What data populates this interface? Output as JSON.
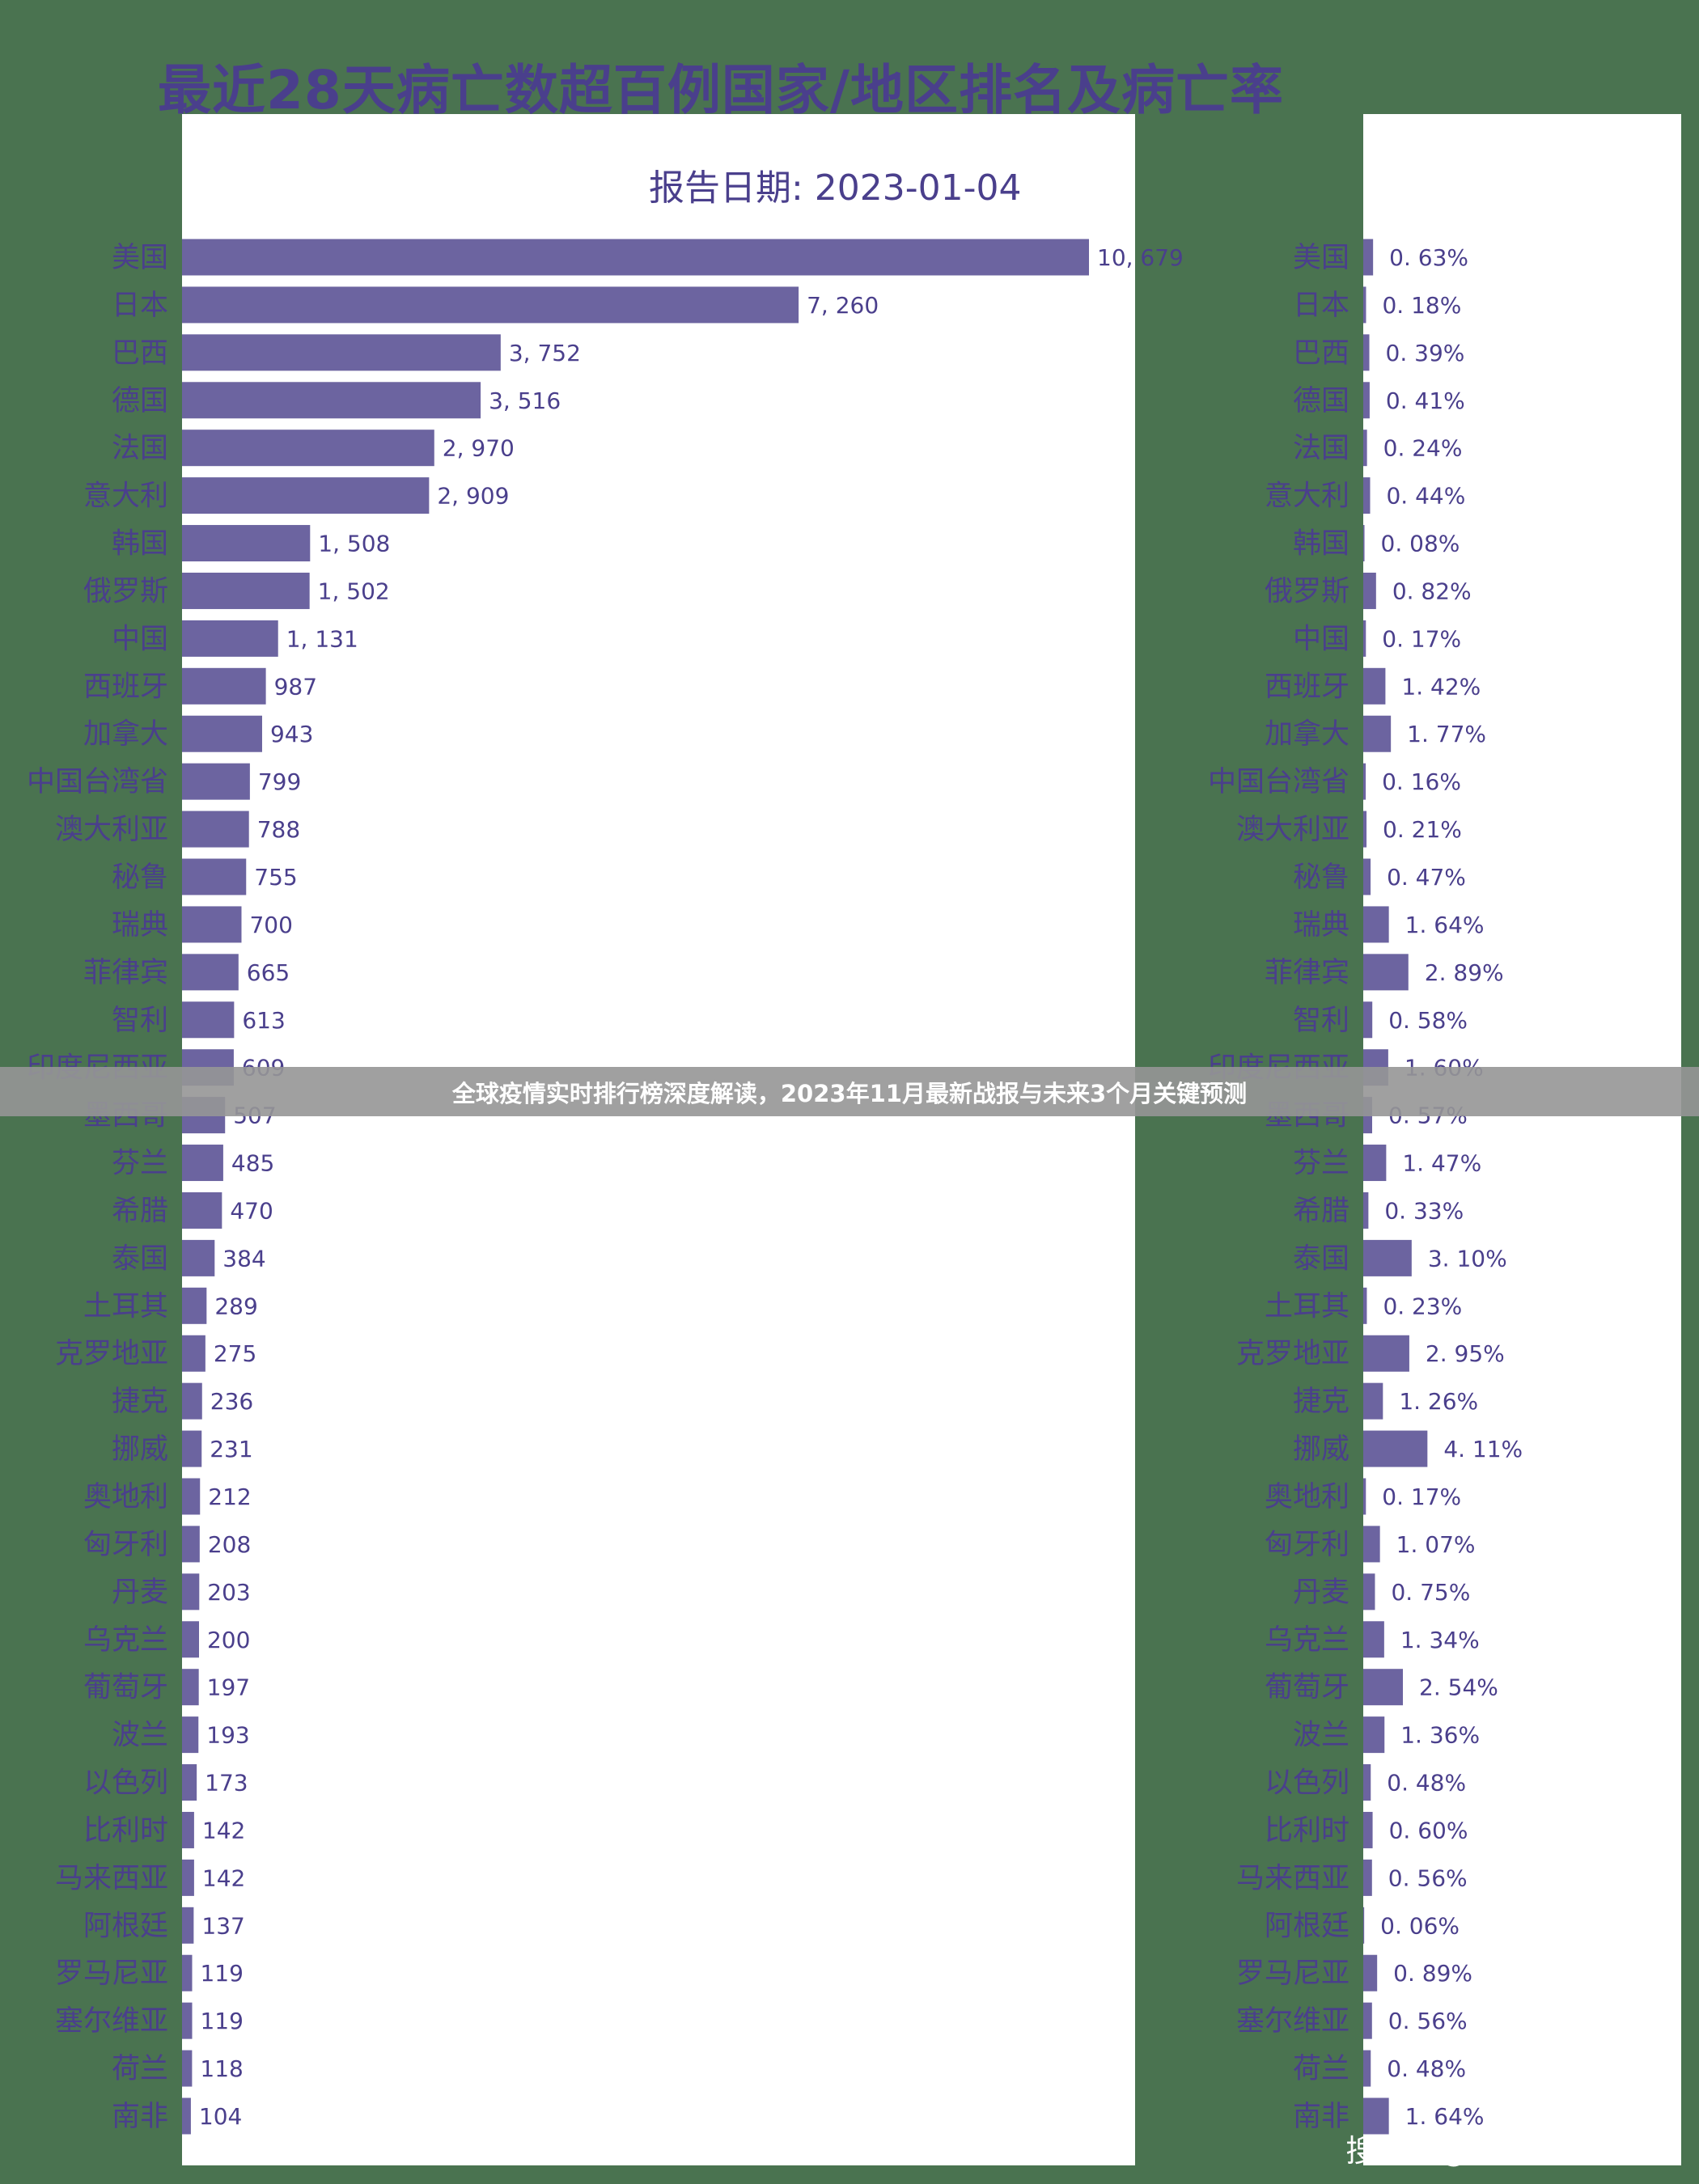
{
  "title": "最近28天病亡数超百例国家/地区排名及病亡率",
  "report_date": "报告日期: 2023-01-04",
  "banner": "全球疫情实时排行榜深度解读，2023年11月最新战报与未来3个月关键预测",
  "watermark": "搜狐号@雪鸮XueXiao",
  "colors": {
    "bar": "#6c64a0",
    "text": "#4a3f8c",
    "background": "#4a7350"
  },
  "chart_data": [
    {
      "type": "bar",
      "orientation": "horizontal",
      "title": "最近28天病亡数",
      "categories": [
        "美国",
        "日本",
        "巴西",
        "德国",
        "法国",
        "意大利",
        "韩国",
        "俄罗斯",
        "中国",
        "西班牙",
        "加拿大",
        "中国台湾省",
        "澳大利亚",
        "秘鲁",
        "瑞典",
        "菲律宾",
        "智利",
        "印度尼西亚",
        "墨西哥",
        "芬兰",
        "希腊",
        "泰国",
        "土耳其",
        "克罗地亚",
        "捷克",
        "挪威",
        "奥地利",
        "匈牙利",
        "丹麦",
        "乌克兰",
        "葡萄牙",
        "波兰",
        "以色列",
        "比利时",
        "马来西亚",
        "阿根廷",
        "罗马尼亚",
        "塞尔维亚",
        "荷兰",
        "南非"
      ],
      "values": [
        10679,
        7260,
        3752,
        3516,
        2970,
        2909,
        1508,
        1502,
        1131,
        987,
        943,
        799,
        788,
        755,
        700,
        665,
        613,
        609,
        507,
        485,
        470,
        384,
        289,
        275,
        236,
        231,
        212,
        208,
        203,
        200,
        197,
        193,
        173,
        142,
        142,
        137,
        119,
        119,
        118,
        104
      ],
      "labels": [
        "10, 679",
        "7, 260",
        "3, 752",
        "3, 516",
        "2, 970",
        "2, 909",
        "1, 508",
        "1, 502",
        "1, 131",
        "987",
        "943",
        "799",
        "788",
        "755",
        "700",
        "665",
        "613",
        "609",
        "507",
        "485",
        "470",
        "384",
        "289",
        "275",
        "236",
        "231",
        "212",
        "208",
        "203",
        "200",
        "197",
        "193",
        "173",
        "142",
        "142",
        "137",
        "119",
        "119",
        "118",
        "104"
      ]
    },
    {
      "type": "bar",
      "orientation": "horizontal",
      "title": "病亡率",
      "unit": "%",
      "values": [
        0.63,
        0.18,
        0.39,
        0.41,
        0.24,
        0.44,
        0.08,
        0.82,
        0.17,
        1.42,
        1.77,
        0.16,
        0.21,
        0.47,
        1.64,
        2.89,
        0.58,
        1.6,
        0.57,
        1.47,
        0.33,
        3.1,
        0.23,
        2.95,
        1.26,
        4.11,
        0.17,
        1.07,
        0.75,
        1.34,
        2.54,
        1.36,
        0.48,
        0.6,
        0.56,
        0.06,
        0.89,
        0.56,
        0.48,
        1.64
      ],
      "labels": [
        "0. 63%",
        "0. 18%",
        "0. 39%",
        "0. 41%",
        "0. 24%",
        "0. 44%",
        "0. 08%",
        "0. 82%",
        "0. 17%",
        "1. 42%",
        "1. 77%",
        "0. 16%",
        "0. 21%",
        "0. 47%",
        "1. 64%",
        "2. 89%",
        "0. 58%",
        "1. 60%",
        "0. 57%",
        "1. 47%",
        "0. 33%",
        "3. 10%",
        "0. 23%",
        "2. 95%",
        "1. 26%",
        "4. 11%",
        "0. 17%",
        "1. 07%",
        "0. 75%",
        "1. 34%",
        "2. 54%",
        "1. 36%",
        "0. 48%",
        "0. 60%",
        "0. 56%",
        "0. 06%",
        "0. 89%",
        "0. 56%",
        "0. 48%",
        "1. 64%"
      ]
    }
  ]
}
